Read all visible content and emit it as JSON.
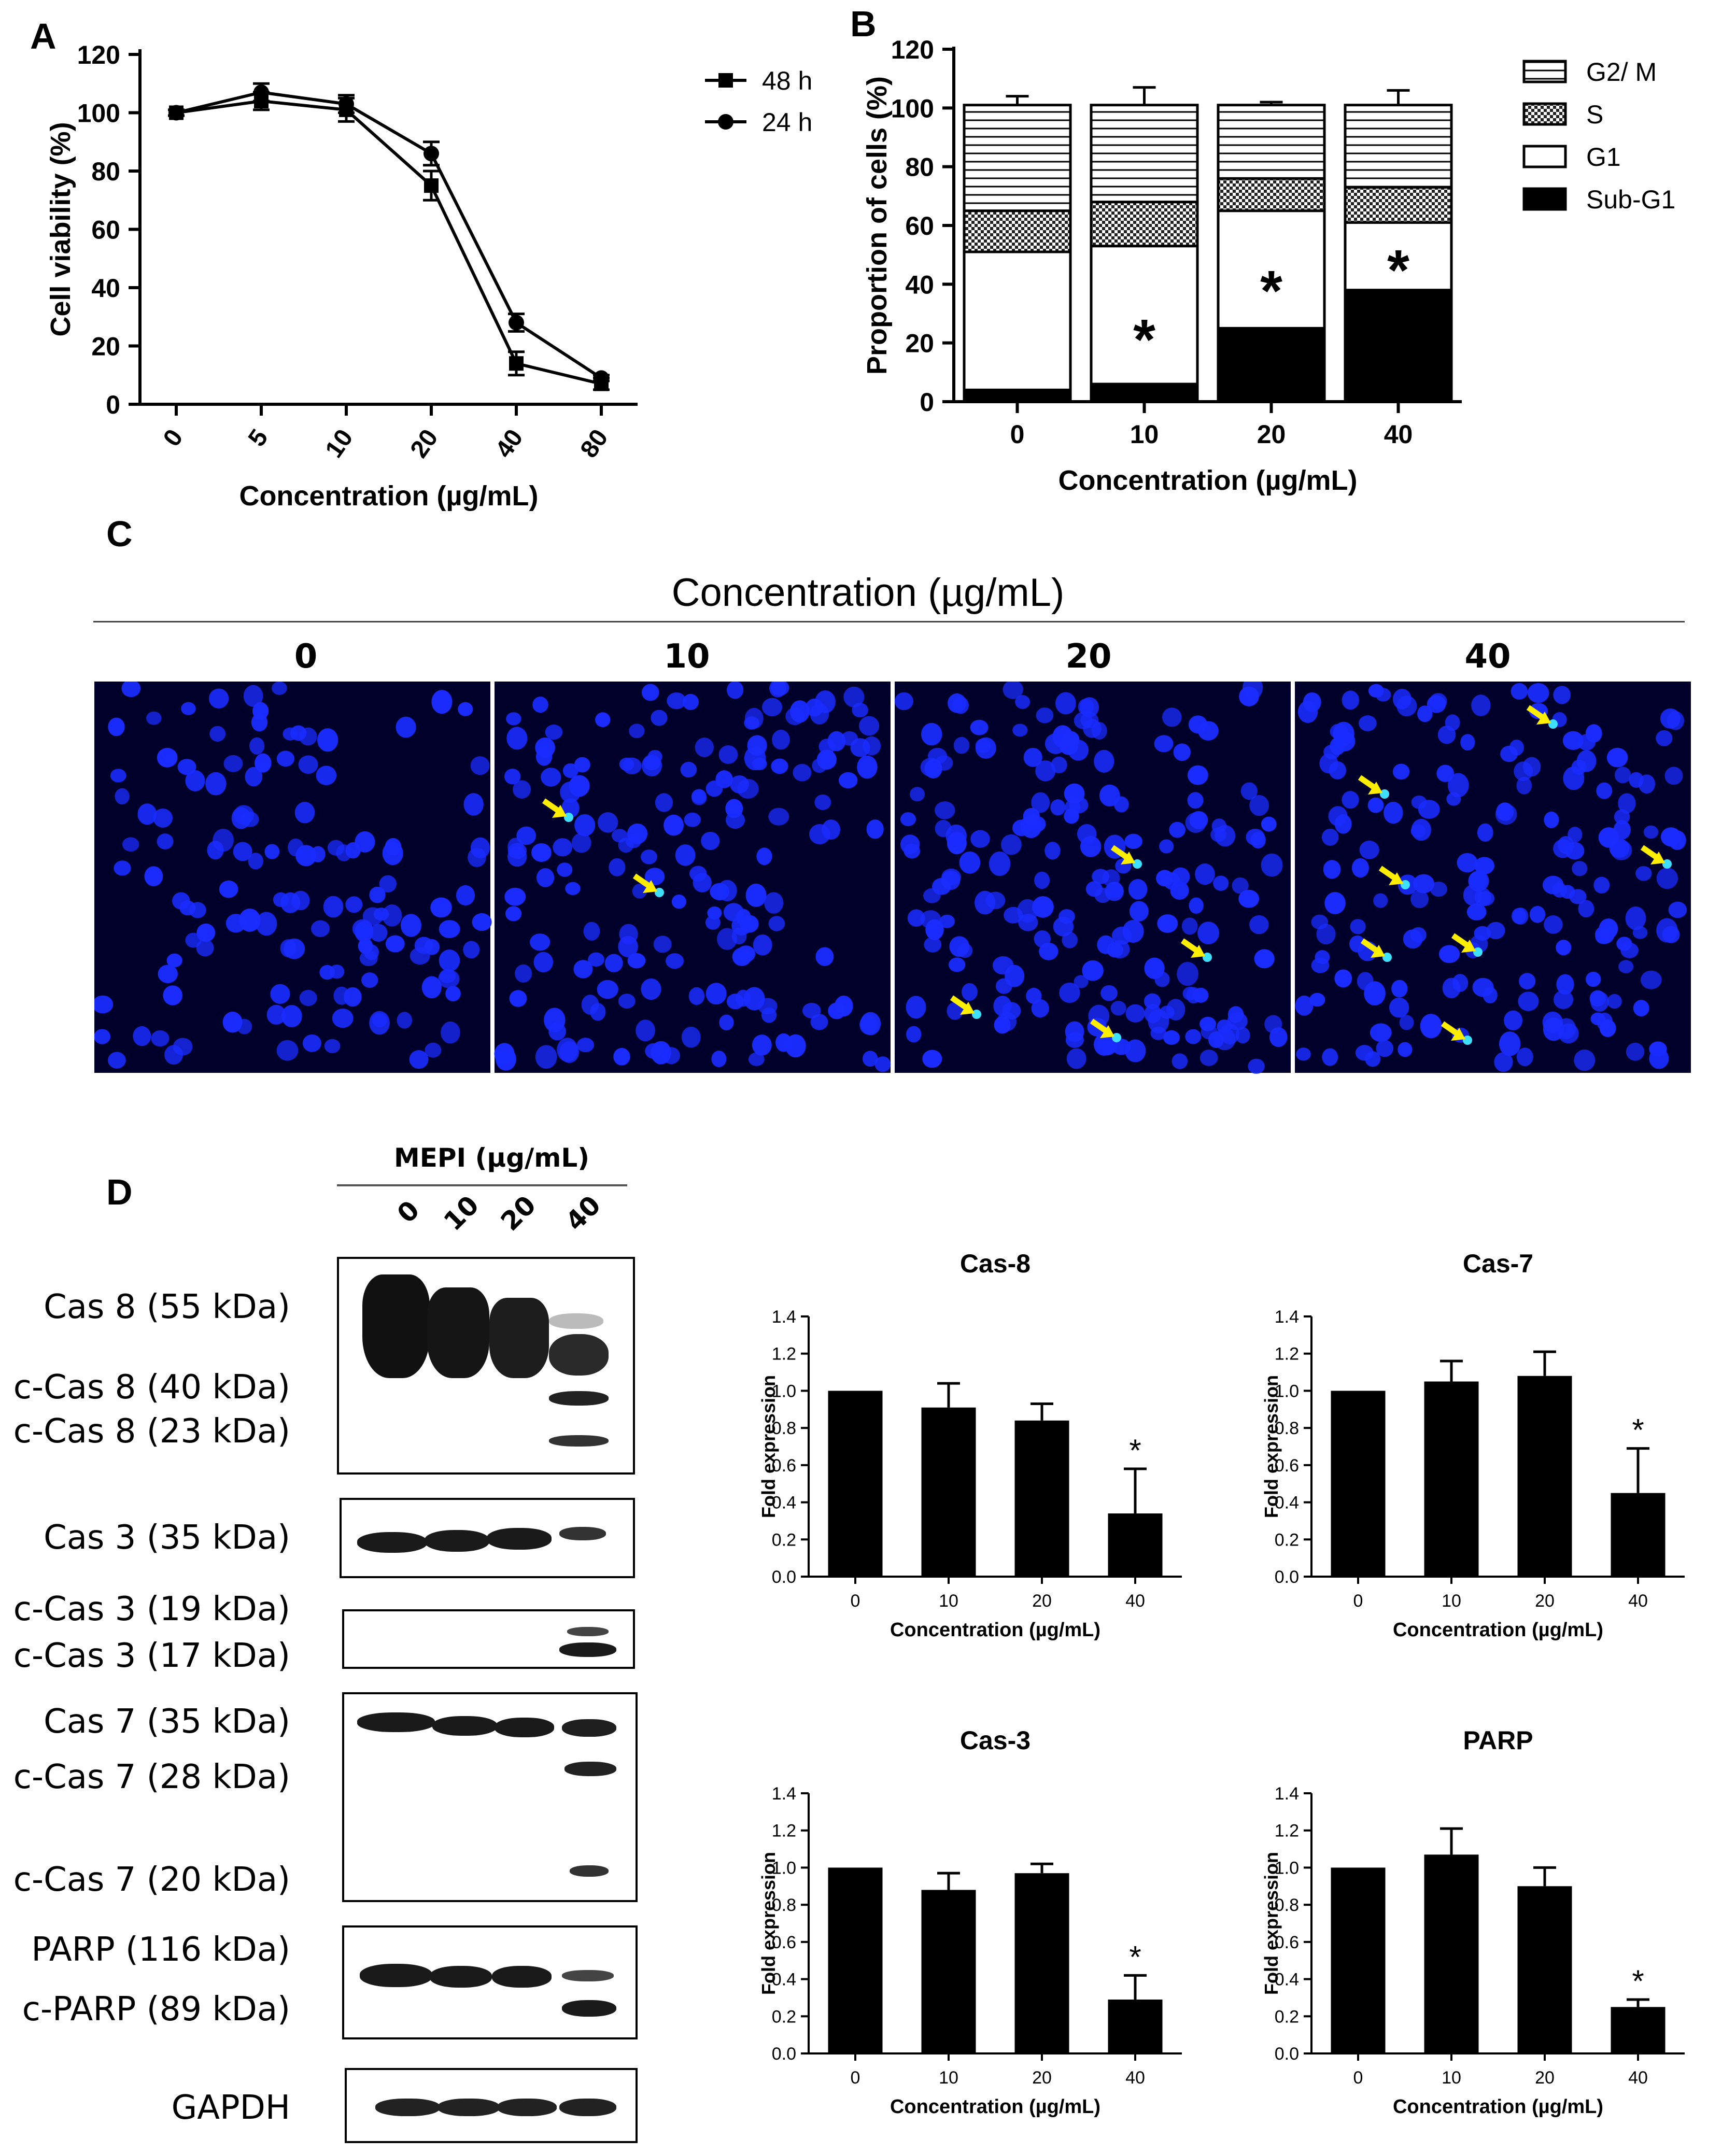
{
  "figure": {
    "panel_letters": [
      "A",
      "B",
      "C",
      "D"
    ]
  },
  "panelA": {
    "legend": [
      {
        "label": "48 h",
        "marker": "square"
      },
      {
        "label": "24 h",
        "marker": "circle"
      }
    ]
  },
  "panelB": {
    "legend": [
      {
        "label": "G2/ M",
        "fill": "hlines"
      },
      {
        "label": "S",
        "fill": "checker"
      },
      {
        "label": "G1",
        "fill": "white"
      },
      {
        "label": "Sub-G1",
        "fill": "black"
      }
    ],
    "annotation": "*"
  },
  "panelC": {
    "header": "Concentration (µg/mL)",
    "columns": [
      "0",
      "10",
      "20",
      "40"
    ],
    "arrow_color": "#ffee00",
    "nuclei_color": "#1a2cff",
    "background_color": "#00002a"
  },
  "panelD": {
    "treatment_header": "MEPI (µg/mL)",
    "lanes": [
      "0",
      "10",
      "20",
      "40"
    ],
    "blots": [
      {
        "labels": [
          "Cas 8 (55 kDa)",
          "c-Cas 8 (40 kDa)",
          "c-Cas 8 (23 kDa)"
        ]
      },
      {
        "labels": [
          "Cas 3 (35 kDa)"
        ]
      },
      {
        "labels": [
          "c-Cas 3 (19 kDa)",
          "c-Cas 3 (17 kDa)"
        ]
      },
      {
        "labels": [
          "Cas 7 (35 kDa)",
          "c-Cas 7 (28 kDa)",
          "c-Cas 7 (20 kDa)"
        ]
      },
      {
        "labels": [
          "PARP (116 kDa)",
          "c-PARP (89 kDa)"
        ]
      },
      {
        "labels": [
          "GAPDH"
        ]
      }
    ]
  },
  "chart_data": [
    {
      "id": "A",
      "type": "line",
      "xlabel": "Concentration (µg/mL)",
      "ylabel": "Cell viability (%)",
      "categories": [
        "0",
        "5",
        "10",
        "20",
        "40",
        "80"
      ],
      "ylim": [
        0,
        120
      ],
      "yticks": [
        0,
        20,
        40,
        60,
        80,
        100,
        120
      ],
      "series": [
        {
          "name": "48 h",
          "values": [
            100,
            104,
            101,
            75,
            14,
            7
          ],
          "errors": [
            1,
            3,
            4,
            5,
            4,
            2
          ]
        },
        {
          "name": "24 h",
          "values": [
            100,
            107,
            103,
            86,
            28,
            9
          ],
          "errors": [
            1,
            3,
            3,
            4,
            3,
            1
          ]
        }
      ]
    },
    {
      "id": "B",
      "type": "bar",
      "stacked": true,
      "xlabel": "Concentration (µg/mL)",
      "ylabel": "Proportion of cells (%)",
      "categories": [
        "0",
        "10",
        "20",
        "40"
      ],
      "ylim": [
        0,
        120
      ],
      "yticks": [
        0,
        20,
        40,
        60,
        80,
        100,
        120
      ],
      "series": [
        {
          "name": "Sub-G1",
          "values": [
            4,
            6,
            25,
            38
          ],
          "errors": [
            0.5,
            1,
            5,
            3
          ]
        },
        {
          "name": "G1",
          "values": [
            47,
            47,
            40,
            23
          ],
          "errors": [
            3,
            4,
            3,
            2
          ]
        },
        {
          "name": "S",
          "values": [
            14,
            15,
            11,
            12
          ],
          "errors": [
            1,
            2,
            1,
            1
          ]
        },
        {
          "name": "G2/ M",
          "values": [
            36,
            33,
            25,
            28
          ],
          "errors": [
            3,
            6,
            1,
            5
          ]
        }
      ],
      "significance": [
        "",
        "*",
        "*",
        "*"
      ]
    },
    {
      "id": "D1",
      "type": "bar",
      "title": "Cas-8",
      "xlabel": "Concentration (µg/mL)",
      "ylabel": "Fold expression",
      "categories": [
        "0",
        "10",
        "20",
        "40"
      ],
      "values": [
        1.0,
        0.91,
        0.84,
        0.34
      ],
      "errors": [
        0,
        0.13,
        0.09,
        0.24
      ],
      "ylim": [
        0,
        1.4
      ],
      "yticks": [
        "0.0",
        "0.2",
        "0.4",
        "0.6",
        "0.8",
        "1.0",
        "1.2",
        "1.4"
      ],
      "significance": [
        "",
        "",
        "",
        "*"
      ]
    },
    {
      "id": "D2",
      "type": "bar",
      "title": "Cas-7",
      "xlabel": "Concentration (µg/mL)",
      "ylabel": "Fold expression",
      "categories": [
        "0",
        "10",
        "20",
        "40"
      ],
      "values": [
        1.0,
        1.05,
        1.08,
        0.45
      ],
      "errors": [
        0,
        0.11,
        0.13,
        0.24
      ],
      "ylim": [
        0,
        1.4
      ],
      "yticks": [
        "0.0",
        "0.2",
        "0.4",
        "0.6",
        "0.8",
        "1.0",
        "1.2",
        "1.4"
      ],
      "significance": [
        "",
        "",
        "",
        "*"
      ]
    },
    {
      "id": "D3",
      "type": "bar",
      "title": "Cas-3",
      "xlabel": "Concentration (µg/mL)",
      "ylabel": "Fold expression",
      "categories": [
        "0",
        "10",
        "20",
        "40"
      ],
      "values": [
        1.0,
        0.88,
        0.97,
        0.29
      ],
      "errors": [
        0,
        0.09,
        0.05,
        0.13
      ],
      "ylim": [
        0,
        1.4
      ],
      "yticks": [
        "0.0",
        "0.2",
        "0.4",
        "0.6",
        "0.8",
        "1.0",
        "1.2",
        "1.4"
      ],
      "significance": [
        "",
        "",
        "",
        "*"
      ]
    },
    {
      "id": "D4",
      "type": "bar",
      "title": "PARP",
      "xlabel": "Concentration (µg/mL)",
      "ylabel": "Fold expression",
      "categories": [
        "0",
        "10",
        "20",
        "40"
      ],
      "values": [
        1.0,
        1.07,
        0.9,
        0.25
      ],
      "errors": [
        0,
        0.14,
        0.1,
        0.04
      ],
      "ylim": [
        0,
        1.4
      ],
      "yticks": [
        "0.0",
        "0.2",
        "0.4",
        "0.6",
        "0.8",
        "1.0",
        "1.2",
        "1.4"
      ],
      "significance": [
        "",
        "",
        "",
        "*"
      ]
    }
  ]
}
